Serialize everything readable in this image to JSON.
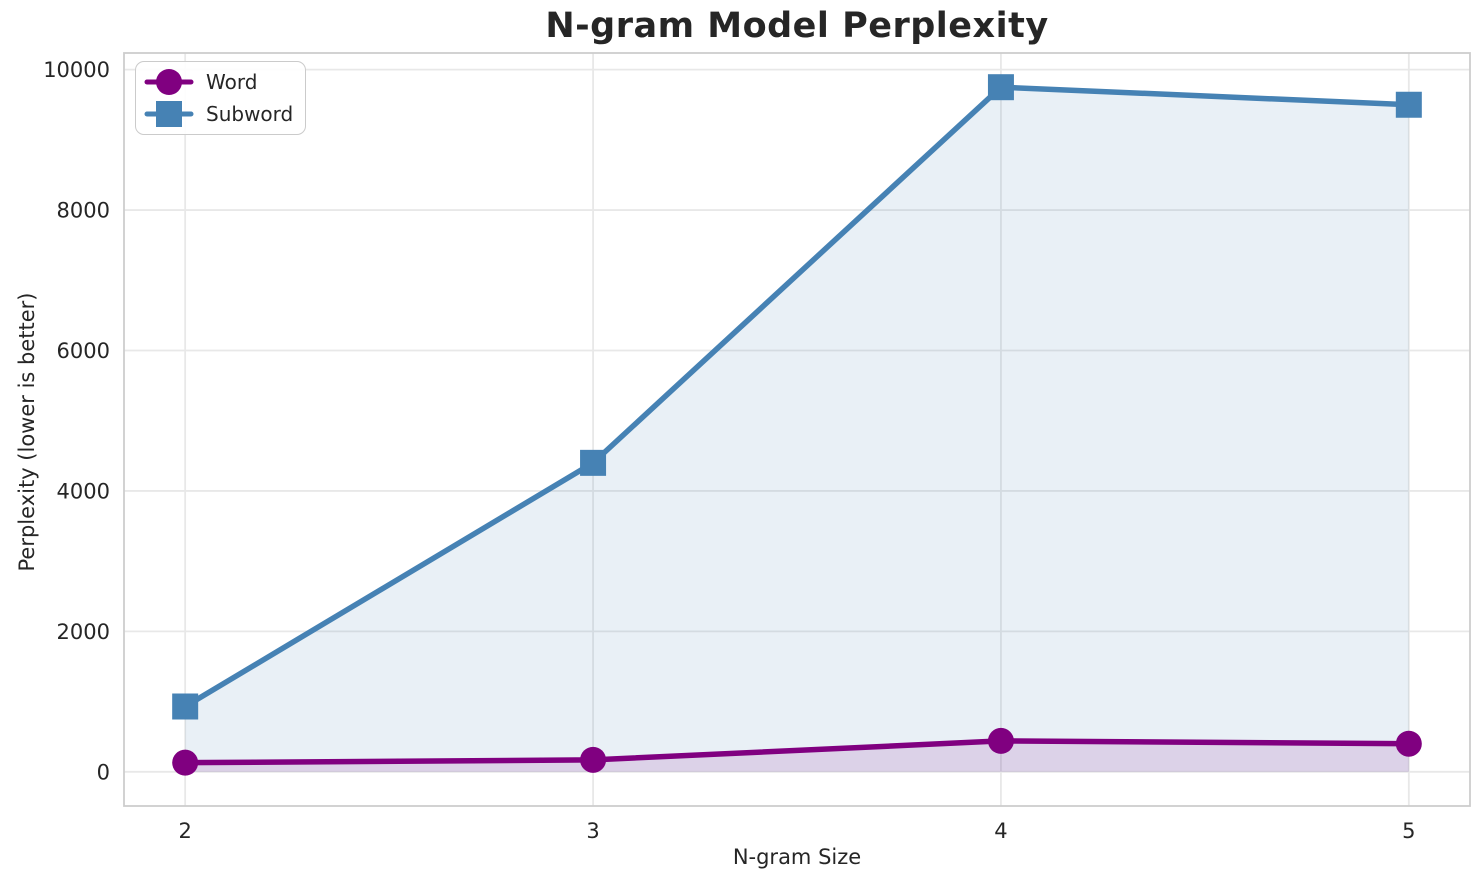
{
  "chart_data": {
    "type": "line",
    "title": "N-gram Model Perplexity",
    "xlabel": "N-gram Size",
    "ylabel": "Perplexity (lower is better)",
    "x": [
      2,
      3,
      4,
      5
    ],
    "series": [
      {
        "name": "Word",
        "color": "#800080",
        "marker": "circle",
        "values": [
          130,
          170,
          440,
          400
        ]
      },
      {
        "name": "Subword",
        "color": "#4682B4",
        "marker": "square",
        "values": [
          930,
          4400,
          9750,
          9500
        ]
      }
    ],
    "area_fill_to_zero": true,
    "fill_opacity": 0.12,
    "xticks": [
      2,
      3,
      4,
      5
    ],
    "yticks": [
      0,
      2000,
      4000,
      6000,
      8000,
      10000
    ],
    "xlim": [
      1.85,
      5.15
    ],
    "ylim": [
      -487,
      10237
    ],
    "grid": true,
    "legend_position": "upper left",
    "text_color": "#262626",
    "grid_color": "#e8e8e8",
    "spine_color": "#cdcdcd",
    "background": "#ffffff"
  }
}
